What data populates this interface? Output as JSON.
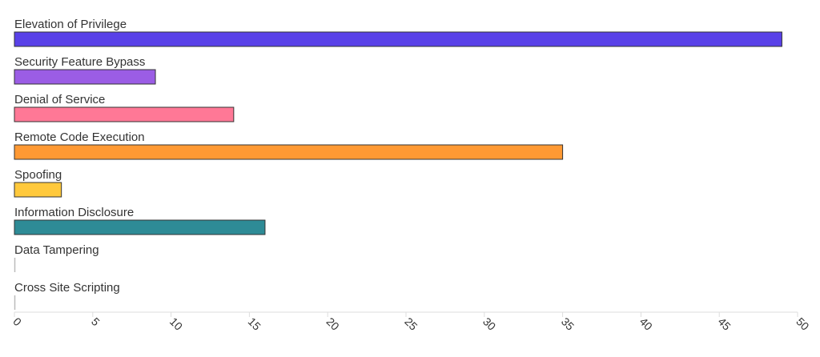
{
  "chart_data": {
    "type": "bar",
    "orientation": "horizontal",
    "categories": [
      "Elevation of Privilege",
      "Security Feature Bypass",
      "Denial of Service",
      "Remote Code Execution",
      "Spoofing",
      "Information Disclosure",
      "Data Tampering",
      "Cross Site Scripting"
    ],
    "values": [
      49,
      9,
      14,
      35,
      3,
      16,
      0,
      0
    ],
    "colors": [
      "#5941e8",
      "#9b5de5",
      "#ff7896",
      "#ff9933",
      "#ffc93c",
      "#2e8b96",
      "#bbbbbb",
      "#bbbbbb"
    ],
    "x_ticks": [
      0,
      5,
      10,
      15,
      20,
      25,
      30,
      35,
      40,
      45,
      50
    ],
    "xlim": [
      0,
      50
    ],
    "title": "",
    "xlabel": "",
    "ylabel": "",
    "grid": false,
    "legend": "none"
  }
}
